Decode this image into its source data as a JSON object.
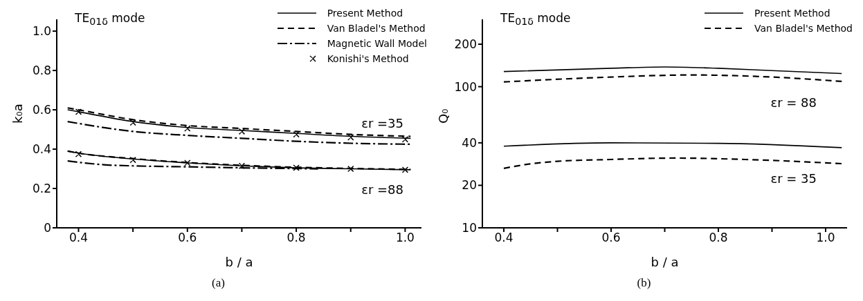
{
  "chart_data": [
    {
      "type": "line",
      "title": "TE$_{01δ}$ mode",
      "xlabel": "b / a",
      "ylabel": "k₀a",
      "xlim": [
        0.36,
        1.03
      ],
      "xticks": [
        0.4,
        {
          "value": 0.5,
          "label": null
        },
        0.6,
        {
          "value": 0.7,
          "label": null
        },
        0.8,
        {
          "value": 0.9,
          "label": null
        },
        {
          "value": 1,
          "label": "1.0"
        }
      ],
      "ylim": [
        0,
        1.06
      ],
      "yticks": [
        0,
        0.2,
        0.4,
        0.6,
        0.8,
        {
          "value": 1,
          "label": "1.0"
        }
      ],
      "grid": false,
      "legend": "top right",
      "series": [
        {
          "name": "Present Method",
          "line_style": "solid",
          "color": "#000000",
          "x": [
            0.38,
            0.4,
            0.5,
            0.6,
            0.7,
            0.8,
            0.9,
            1.01
          ],
          "values": [
            0.6,
            0.59,
            0.54,
            0.51,
            0.495,
            0.48,
            0.465,
            0.455
          ]
        },
        {
          "name": "Van Bladel's Method",
          "line_style": "dashed",
          "color": "#000000",
          "x": [
            0.38,
            0.4,
            0.5,
            0.6,
            0.7,
            0.8,
            0.9,
            1.01
          ],
          "values": [
            0.61,
            0.6,
            0.55,
            0.52,
            0.505,
            0.49,
            0.475,
            0.465
          ]
        },
        {
          "name": "Magnetic Wall Model",
          "line_style": "dashdot",
          "color": "#000000",
          "x": [
            0.38,
            0.5,
            0.6,
            0.7,
            0.8,
            0.9,
            1.01
          ],
          "values": [
            0.54,
            0.49,
            0.47,
            0.455,
            0.44,
            0.43,
            0.425
          ]
        },
        {
          "name": "Konishi's Method",
          "type": "scatter",
          "marker": "cross",
          "color": "#000000",
          "x": [
            0.4,
            0.5,
            0.6,
            0.7,
            0.8,
            0.9,
            1.0
          ],
          "values": [
            0.59,
            0.535,
            0.505,
            0.49,
            0.475,
            0.46,
            0.45
          ]
        },
        {
          "line_style": "solid",
          "color": "#000000",
          "x": [
            0.38,
            0.4,
            0.5,
            0.6,
            0.7,
            0.8,
            0.9,
            1.01
          ],
          "values": [
            0.39,
            0.38,
            0.35,
            0.33,
            0.315,
            0.305,
            0.3,
            0.295
          ]
        },
        {
          "line_style": "dashed",
          "color": "#000000",
          "x": [
            0.38,
            0.4,
            0.5,
            0.6,
            0.7,
            0.8,
            0.9,
            1.01
          ],
          "values": [
            0.39,
            0.38,
            0.352,
            0.332,
            0.318,
            0.308,
            0.302,
            0.297
          ]
        },
        {
          "line_style": "dashdot",
          "color": "#000000",
          "x": [
            0.38,
            0.45,
            0.5,
            0.6,
            0.7,
            0.84
          ],
          "values": [
            0.34,
            0.32,
            0.315,
            0.31,
            0.305,
            0.3
          ]
        },
        {
          "type": "scatter",
          "marker": "cross",
          "color": "#000000",
          "x": [
            0.4,
            0.5,
            0.6,
            0.7,
            0.8,
            0.9,
            1.0
          ],
          "values": [
            0.375,
            0.345,
            0.33,
            0.315,
            0.305,
            0.3,
            0.295
          ]
        }
      ],
      "annotations": [
        "εr =35",
        "εr =88",
        "(a)"
      ]
    },
    {
      "type": "line",
      "title": "TE$_{01δ}$ mode",
      "xlabel": "b / a",
      "ylabel": "Q₀",
      "log": "y",
      "xlim": [
        0.36,
        1.04
      ],
      "xticks": [
        0.4,
        {
          "value": 0.5,
          "label": null
        },
        0.6,
        {
          "value": 0.7,
          "label": null
        },
        0.8,
        {
          "value": 0.9,
          "label": null
        },
        {
          "value": 1,
          "label": "1.0"
        }
      ],
      "ylim": [
        10,
        300
      ],
      "yticks": [
        10,
        20,
        40,
        100,
        200
      ],
      "grid": false,
      "legend": "top right",
      "series": [
        {
          "name": "Present Method",
          "line_style": "solid",
          "color": "#000000",
          "x": [
            0.4,
            0.6,
            0.7,
            0.8,
            0.9,
            1.03
          ],
          "values": [
            128,
            135,
            138,
            135,
            130,
            124
          ]
        },
        {
          "name": "Van Bladel's Method",
          "line_style": "dashed",
          "color": "#000000",
          "x": [
            0.4,
            0.6,
            0.75,
            0.9,
            1.03
          ],
          "values": [
            108,
            117,
            121,
            117,
            109
          ]
        },
        {
          "line_style": "solid",
          "color": "#000000",
          "x": [
            0.4,
            0.6,
            0.8,
            1.03
          ],
          "values": [
            37.9,
            40,
            39.7,
            37
          ]
        },
        {
          "line_style": "dashed",
          "color": "#000000",
          "x": [
            0.4,
            0.45,
            0.5,
            0.6,
            0.72,
            0.85,
            1.03
          ],
          "values": [
            26.4,
            28.4,
            29.6,
            30.5,
            31.2,
            30.5,
            28.5
          ]
        }
      ],
      "annotations": [
        "εr = 88",
        "εr = 35",
        "(b)"
      ]
    }
  ]
}
